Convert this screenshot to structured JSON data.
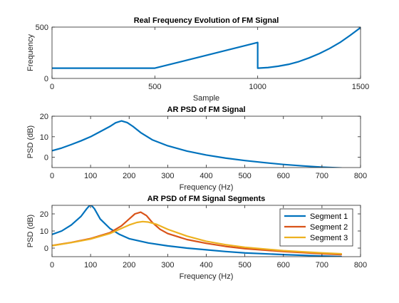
{
  "colors": {
    "series1": "#0072BD",
    "series2": "#D95319",
    "series3": "#EDB120",
    "axis": "#262626",
    "background": "#ffffff"
  },
  "chart_data": [
    {
      "type": "line",
      "title": "Real Frequency Evolution of FM Signal",
      "xlabel": "Sample",
      "ylabel": "Frequency",
      "xlim": [
        0,
        1500
      ],
      "ylim": [
        0,
        500
      ],
      "xticks": [
        "0",
        "500",
        "1000",
        "1500"
      ],
      "yticks": [
        "0",
        "500"
      ],
      "grid": false,
      "series": [
        {
          "x": [
            0,
            500,
            1000,
            1000,
            1050,
            1100,
            1150,
            1200,
            1250,
            1300,
            1350,
            1400,
            1450,
            1500
          ],
          "y": [
            100,
            100,
            350,
            100,
            106,
            119,
            137,
            164,
            200,
            242,
            292,
            350,
            420,
            495
          ]
        }
      ]
    },
    {
      "type": "line",
      "title": "AR PSD of FM Signal",
      "xlabel": "Frequency (Hz)",
      "ylabel": "PSD (dB)",
      "xlim": [
        0,
        800
      ],
      "ylim": [
        -5,
        20
      ],
      "xticks": [
        "0",
        "100",
        "200",
        "300",
        "400",
        "500",
        "600",
        "700",
        "800"
      ],
      "yticks": [
        "0",
        "10",
        "20"
      ],
      "grid": false,
      "series": [
        {
          "x": [
            0,
            25,
            50,
            75,
            100,
            125,
            150,
            165,
            180,
            195,
            210,
            230,
            260,
            300,
            350,
            400,
            450,
            500,
            550,
            600,
            650,
            700,
            750
          ],
          "y": [
            3.2,
            4.5,
            6.2,
            8.0,
            10.0,
            12.5,
            15.0,
            16.8,
            17.7,
            16.9,
            15.0,
            12.0,
            8.5,
            5.6,
            3.0,
            1.1,
            -0.4,
            -1.6,
            -2.6,
            -3.5,
            -4.2,
            -4.8,
            -5.2
          ]
        }
      ]
    },
    {
      "type": "line",
      "title": "AR PSD of FM Signal Segments",
      "xlabel": "Frequency (Hz)",
      "ylabel": "PSD (dB)",
      "xlim": [
        0,
        800
      ],
      "ylim": [
        -5,
        25
      ],
      "xticks": [
        "0",
        "100",
        "200",
        "300",
        "400",
        "500",
        "600",
        "700",
        "800"
      ],
      "yticks": [
        "0",
        "10",
        "20"
      ],
      "grid": false,
      "legend": "top-right",
      "series": [
        {
          "name": "Segment 1",
          "x": [
            0,
            25,
            50,
            75,
            90,
            100,
            110,
            125,
            150,
            175,
            200,
            250,
            300,
            350,
            400,
            450,
            500,
            600,
            700,
            750
          ],
          "y": [
            8.0,
            10.0,
            13.5,
            18.5,
            23.0,
            25.5,
            23.0,
            17.0,
            11.5,
            8.0,
            5.5,
            3.0,
            1.3,
            0.0,
            -1.0,
            -2.0,
            -2.8,
            -3.8,
            -4.6,
            -5.0
          ]
        },
        {
          "name": "Segment 2",
          "x": [
            0,
            50,
            100,
            150,
            180,
            200,
            215,
            230,
            245,
            260,
            280,
            300,
            350,
            400,
            450,
            500,
            600,
            700,
            750
          ],
          "y": [
            1.5,
            3.3,
            5.6,
            9.0,
            13.0,
            17.0,
            20.0,
            21.0,
            19.0,
            15.0,
            11.0,
            8.5,
            5.0,
            2.8,
            1.0,
            -0.3,
            -2.0,
            -3.3,
            -3.8
          ]
        },
        {
          "name": "Segment 3",
          "x": [
            0,
            50,
            100,
            150,
            180,
            200,
            220,
            235,
            250,
            270,
            300,
            350,
            400,
            450,
            500,
            600,
            700,
            750
          ],
          "y": [
            1.4,
            3.2,
            5.3,
            8.5,
            11.5,
            13.5,
            15.0,
            15.5,
            15.2,
            14.0,
            11.0,
            7.0,
            4.0,
            2.0,
            0.5,
            -1.5,
            -2.8,
            -3.3
          ]
        }
      ]
    }
  ]
}
